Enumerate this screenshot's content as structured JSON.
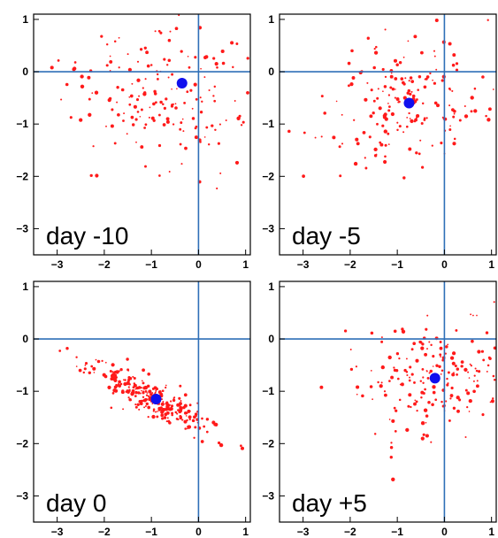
{
  "chart_data": [
    {
      "type": "scatter",
      "label": "day -10",
      "xlim": [
        -3.5,
        1.1
      ],
      "ylim": [
        -3.5,
        1.1
      ],
      "x_ticks": [
        -3,
        -2,
        -1,
        0,
        1
      ],
      "y_ticks": [
        1,
        0,
        -1,
        -2,
        -3
      ],
      "tick_labels_x": [
        "−3",
        "−2",
        "−1",
        "0",
        "1"
      ],
      "tick_labels_y": [
        "1",
        "0",
        "−1",
        "−2",
        "−3"
      ],
      "grid": false,
      "reference_lines": {
        "x": 0,
        "y": 0
      },
      "cloud": {
        "center": [
          -0.75,
          -0.45
        ],
        "spread": [
          0.95,
          0.7
        ],
        "count": 190,
        "angle": 0,
        "seed": 11
      },
      "mean_point": {
        "x": -0.35,
        "y": -0.22
      },
      "colors": {
        "points": "#ff1a1a",
        "mean": "#1010ee",
        "reference": "#2e6fb7"
      }
    },
    {
      "type": "scatter",
      "label": "day -5",
      "xlim": [
        -3.5,
        1.1
      ],
      "ylim": [
        -3.5,
        1.1
      ],
      "x_ticks": [
        -3,
        -2,
        -1,
        0,
        1
      ],
      "y_ticks": [
        1,
        0,
        -1,
        -2,
        -3
      ],
      "tick_labels_x": [
        "−3",
        "−2",
        "−1",
        "0",
        "1"
      ],
      "tick_labels_y": [
        "1",
        "0",
        "−1",
        "−2",
        "−3"
      ],
      "grid": false,
      "reference_lines": {
        "x": 0,
        "y": 0
      },
      "cloud": {
        "center": [
          -0.8,
          -0.65
        ],
        "spread": [
          0.85,
          0.6
        ],
        "count": 190,
        "angle": 0,
        "seed": 23
      },
      "mean_point": {
        "x": -0.75,
        "y": -0.6
      },
      "colors": {
        "points": "#ff1a1a",
        "mean": "#1010ee",
        "reference": "#2e6fb7"
      }
    },
    {
      "type": "scatter",
      "label": "day 0",
      "xlim": [
        -3.5,
        1.1
      ],
      "ylim": [
        -3.5,
        1.1
      ],
      "x_ticks": [
        -3,
        -2,
        -1,
        0,
        1
      ],
      "y_ticks": [
        1,
        0,
        -1,
        -2,
        -3
      ],
      "tick_labels_x": [
        "−3",
        "−2",
        "−1",
        "0",
        "1"
      ],
      "tick_labels_y": [
        "1",
        "0",
        "−1",
        "−2",
        "−3"
      ],
      "grid": false,
      "reference_lines": {
        "x": 0,
        "y": 0
      },
      "cloud": {
        "center": [
          -0.95,
          -1.15
        ],
        "spread": [
          0.75,
          0.16
        ],
        "count": 280,
        "angle": -25,
        "seed": 37
      },
      "mean_point": {
        "x": -0.9,
        "y": -1.15
      },
      "colors": {
        "points": "#ff1a1a",
        "mean": "#1010ee",
        "reference": "#2e6fb7"
      }
    },
    {
      "type": "scatter",
      "label": "day +5",
      "xlim": [
        -3.5,
        1.1
      ],
      "ylim": [
        -3.5,
        1.1
      ],
      "x_ticks": [
        -3,
        -2,
        -1,
        0,
        1
      ],
      "y_ticks": [
        1,
        0,
        -1,
        -2,
        -3
      ],
      "tick_labels_x": [
        "−3",
        "−2",
        "−1",
        "0",
        "1"
      ],
      "tick_labels_y": [
        "1",
        "0",
        "−1",
        "−2",
        "−3"
      ],
      "grid": false,
      "reference_lines": {
        "x": 0,
        "y": 0
      },
      "cloud": {
        "center": [
          -0.25,
          -0.8
        ],
        "spread": [
          0.8,
          0.55
        ],
        "count": 200,
        "angle": 0,
        "seed": 53
      },
      "mean_point": {
        "x": -0.2,
        "y": -0.75
      },
      "colors": {
        "points": "#ff1a1a",
        "mean": "#1010ee",
        "reference": "#2e6fb7"
      }
    }
  ]
}
